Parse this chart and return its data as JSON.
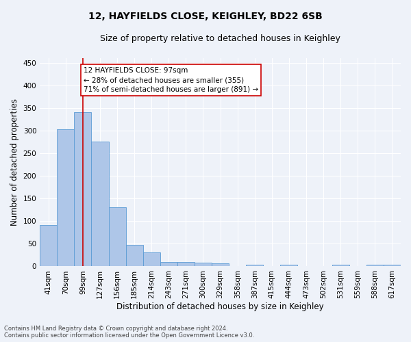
{
  "title_line1": "12, HAYFIELDS CLOSE, KEIGHLEY, BD22 6SB",
  "title_line2": "Size of property relative to detached houses in Keighley",
  "xlabel": "Distribution of detached houses by size in Keighley",
  "ylabel": "Number of detached properties",
  "categories": [
    "41sqm",
    "70sqm",
    "99sqm",
    "127sqm",
    "156sqm",
    "185sqm",
    "214sqm",
    "243sqm",
    "271sqm",
    "300sqm",
    "329sqm",
    "358sqm",
    "387sqm",
    "415sqm",
    "444sqm",
    "473sqm",
    "502sqm",
    "531sqm",
    "559sqm",
    "588sqm",
    "617sqm"
  ],
  "values": [
    92,
    303,
    340,
    276,
    131,
    47,
    31,
    10,
    10,
    8,
    7,
    0,
    4,
    0,
    3,
    0,
    0,
    4,
    0,
    3,
    4
  ],
  "bar_color": "#aec6e8",
  "bar_edge_color": "#5b9bd5",
  "vline_x_index": 2,
  "vline_color": "#cc0000",
  "annotation_text": "12 HAYFIELDS CLOSE: 97sqm\n← 28% of detached houses are smaller (355)\n71% of semi-detached houses are larger (891) →",
  "annotation_box_color": "#ffffff",
  "annotation_box_edge": "#cc0000",
  "ylim": [
    0,
    460
  ],
  "yticks": [
    0,
    50,
    100,
    150,
    200,
    250,
    300,
    350,
    400,
    450
  ],
  "footer_line1": "Contains HM Land Registry data © Crown copyright and database right 2024.",
  "footer_line2": "Contains public sector information licensed under the Open Government Licence v3.0.",
  "background_color": "#eef2f9",
  "grid_color": "#ffffff",
  "title_fontsize": 10,
  "subtitle_fontsize": 9,
  "axis_label_fontsize": 8.5,
  "tick_fontsize": 7.5,
  "annot_fontsize": 7.5,
  "footer_fontsize": 6
}
